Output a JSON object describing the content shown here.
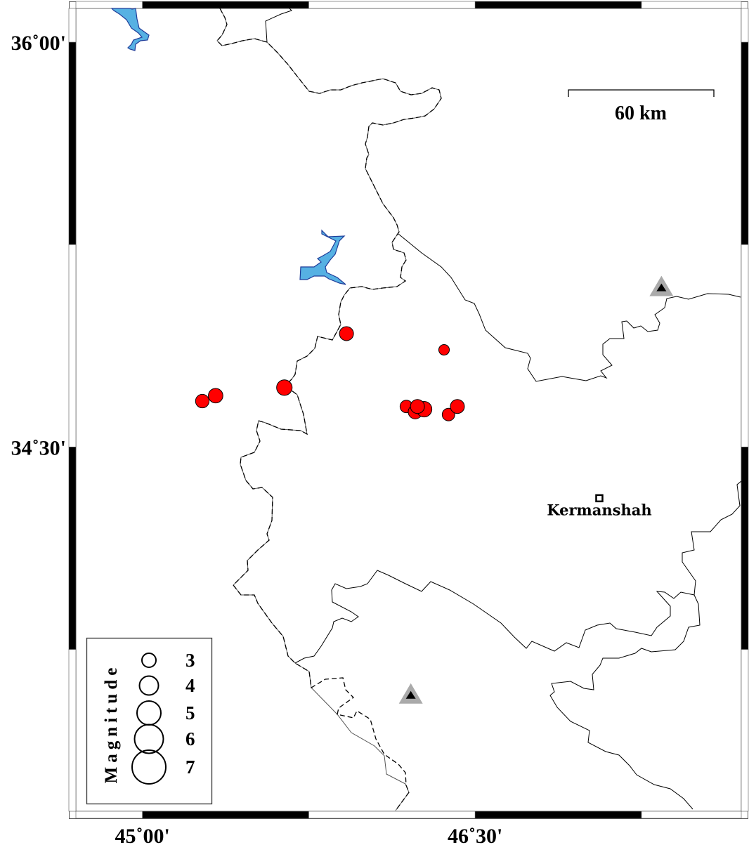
{
  "map": {
    "lon_range": [
      44.7,
      47.7
    ],
    "lat_range": [
      33.15,
      36.125
    ],
    "frame_tick_interval_deg": 0.75,
    "lon_labels": [
      {
        "lon": 45.0,
        "text": "45˚00'"
      },
      {
        "lon": 46.5,
        "text": "46˚30'"
      }
    ],
    "lat_labels": [
      {
        "lat": 36.0,
        "text": "36˚00'"
      },
      {
        "lat": 34.5,
        "text": "34˚30'"
      }
    ],
    "colors": {
      "event": "#ff0000",
      "water": "#56b1e3",
      "station_outer": "#aaaaaa",
      "station_inner": "#000000"
    }
  },
  "scale_bar": {
    "label": "60 km"
  },
  "city": {
    "name": "Kermanshah",
    "lon": 47.06,
    "lat": 34.31
  },
  "stations": [
    {
      "lon": 47.34,
      "lat": 35.09
    },
    {
      "lon": 46.21,
      "lat": 33.58
    }
  ],
  "events": [
    {
      "lon": 45.27,
      "lat": 34.67,
      "mag": 2.9
    },
    {
      "lon": 45.33,
      "lat": 34.69,
      "mag": 3.1
    },
    {
      "lon": 45.64,
      "lat": 34.72,
      "mag": 3.3
    },
    {
      "lon": 45.92,
      "lat": 34.92,
      "mag": 3.0
    },
    {
      "lon": 46.36,
      "lat": 34.86,
      "mag": 2.3
    },
    {
      "lon": 46.19,
      "lat": 34.65,
      "mag": 2.7
    },
    {
      "lon": 46.23,
      "lat": 34.63,
      "mag": 3.0
    },
    {
      "lon": 46.27,
      "lat": 34.64,
      "mag": 3.3
    },
    {
      "lon": 46.24,
      "lat": 34.65,
      "mag": 3.0
    },
    {
      "lon": 46.38,
      "lat": 34.62,
      "mag": 2.7
    },
    {
      "lon": 46.42,
      "lat": 34.65,
      "mag": 3.0
    }
  ],
  "legend": {
    "title": "Magnitude",
    "items": [
      {
        "mag": 3,
        "label": "3"
      },
      {
        "mag": 4,
        "label": "4"
      },
      {
        "mag": 5,
        "label": "5"
      },
      {
        "mag": 6,
        "label": "6"
      },
      {
        "mag": 7,
        "label": "7"
      }
    ]
  }
}
